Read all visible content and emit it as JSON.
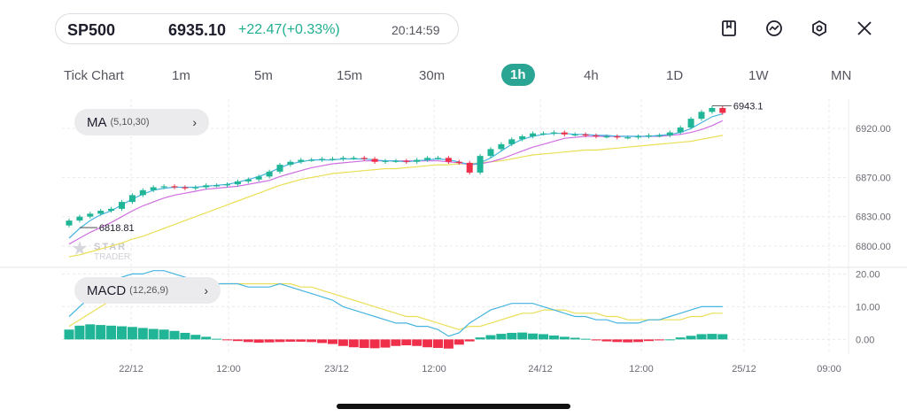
{
  "quote": {
    "symbol": "SP500",
    "price": "6935.10",
    "change": "+22.47(+0.33%)",
    "time": "20:14:59"
  },
  "toolbar_icons": [
    "bookmark-icon",
    "trend-chart-icon",
    "settings-hex-icon",
    "close-icon"
  ],
  "timeframes": {
    "items": [
      "Tick Chart",
      "1m",
      "5m",
      "15m",
      "30m",
      "1h",
      "4h",
      "1D",
      "1W",
      "MN"
    ],
    "selected": "1h"
  },
  "indicators": {
    "ma": {
      "name": "MA",
      "params": "(5,10,30)"
    },
    "macd": {
      "name": "MACD",
      "params": "(12,26,9)"
    }
  },
  "watermark": {
    "line1": "STAR",
    "line2": "TRADER"
  },
  "chart_data": [
    {
      "type": "candlestick",
      "panel": "price",
      "high_label": "6943.1",
      "low_label": "6818.81",
      "y_ticks": [
        "6920.00",
        "6870.00",
        "6830.00",
        "6800.00"
      ],
      "y_tick_values": [
        6920,
        6870,
        6830,
        6800
      ],
      "ylim": [
        6780,
        6950
      ],
      "x_ticks": [
        "22/12",
        "12:00",
        "23/12",
        "12:00",
        "24/12",
        "12:00",
        "25/12",
        "09:00"
      ],
      "colors": {
        "up": "#1fb596",
        "down": "#ef2e4a",
        "ma5": "#46b4e0",
        "ma10": "#cf6ee0",
        "ma30": "#eadf56"
      },
      "close": [
        6826,
        6830,
        6833,
        6836,
        6838,
        6845,
        6852,
        6857,
        6860,
        6861,
        6860,
        6859,
        6860,
        6862,
        6862,
        6863,
        6866,
        6868,
        6871,
        6876,
        6883,
        6886,
        6888,
        6888,
        6889,
        6889,
        6890,
        6890,
        6889,
        6886,
        6887,
        6887,
        6886,
        6888,
        6890,
        6890,
        6886,
        6885,
        6875,
        6892,
        6899,
        6904,
        6909,
        6912,
        6915,
        6915,
        6916,
        6914,
        6914,
        6913,
        6912,
        6912,
        6911,
        6911,
        6912,
        6913,
        6913,
        6916,
        6921,
        6930,
        6937,
        6941,
        6936
      ],
      "ma5": [
        6808,
        6818,
        6826,
        6832,
        6836,
        6842,
        6848,
        6853,
        6857,
        6859,
        6860,
        6860,
        6860,
        6861,
        6862,
        6863,
        6865,
        6868,
        6871,
        6875,
        6880,
        6884,
        6886,
        6888,
        6888,
        6888,
        6889,
        6889,
        6889,
        6888,
        6887,
        6887,
        6886,
        6887,
        6888,
        6889,
        6888,
        6886,
        6883,
        6885,
        6890,
        6897,
        6904,
        6909,
        6912,
        6914,
        6915,
        6915,
        6914,
        6914,
        6913,
        6913,
        6912,
        6912,
        6912,
        6912,
        6913,
        6914,
        6916,
        6920,
        6926,
        6932,
        6935
      ],
      "ma10": [
        6802,
        6808,
        6814,
        6819,
        6824,
        6830,
        6836,
        6841,
        6845,
        6849,
        6852,
        6854,
        6856,
        6858,
        6859,
        6860,
        6861,
        6863,
        6865,
        6867,
        6871,
        6874,
        6877,
        6880,
        6882,
        6884,
        6885,
        6886,
        6887,
        6887,
        6887,
        6887,
        6887,
        6887,
        6887,
        6887,
        6886,
        6885,
        6883,
        6884,
        6886,
        6889,
        6893,
        6897,
        6901,
        6904,
        6907,
        6910,
        6911,
        6912,
        6912,
        6912,
        6912,
        6912,
        6912,
        6912,
        6912,
        6913,
        6914,
        6916,
        6919,
        6923,
        6928
      ],
      "ma30": [
        6789,
        6791,
        6794,
        6797,
        6800,
        6803,
        6807,
        6810,
        6814,
        6818,
        6822,
        6826,
        6830,
        6834,
        6838,
        6842,
        6846,
        6850,
        6854,
        6858,
        6862,
        6865,
        6868,
        6870,
        6872,
        6874,
        6875,
        6876,
        6877,
        6878,
        6879,
        6879,
        6880,
        6881,
        6882,
        6883,
        6883,
        6884,
        6884,
        6885,
        6886,
        6887,
        6889,
        6891,
        6893,
        6894,
        6895,
        6896,
        6897,
        6898,
        6898,
        6899,
        6900,
        6901,
        6902,
        6903,
        6904,
        6905,
        6906,
        6907,
        6909,
        6911,
        6913
      ]
    },
    {
      "type": "macd",
      "panel": "indicator",
      "y_ticks": [
        "20.00",
        "10.00",
        "0.00"
      ],
      "y_tick_values": [
        20,
        10,
        0
      ],
      "ylim": [
        -4.5,
        22
      ],
      "dif": [
        7,
        10,
        13,
        16,
        18,
        19,
        20,
        20,
        21,
        21,
        20,
        19,
        18,
        18,
        17,
        17,
        17,
        16,
        16,
        16,
        17,
        16,
        15,
        14,
        13,
        12,
        10,
        9,
        8,
        7,
        6,
        5,
        5,
        4,
        4,
        3,
        1,
        2,
        5,
        7,
        9,
        10,
        11,
        11,
        11,
        10,
        9,
        8,
        7,
        7,
        6,
        6,
        5,
        5,
        5,
        6,
        6,
        7,
        8,
        9,
        10,
        10,
        10
      ],
      "dea": [
        4,
        6,
        8,
        10,
        12,
        14,
        15,
        16,
        17,
        17,
        17,
        17,
        17,
        17,
        17,
        17,
        17,
        17,
        17,
        17,
        17,
        17,
        16,
        16,
        15,
        14,
        13,
        12,
        11,
        10,
        9,
        8,
        7,
        7,
        6,
        5,
        4,
        3,
        4,
        4,
        5,
        6,
        7,
        8,
        8,
        9,
        9,
        9,
        8,
        8,
        8,
        7,
        7,
        6,
        6,
        6,
        6,
        6,
        6,
        7,
        7,
        8,
        8
      ],
      "hist": [
        3.0,
        4.2,
        4.6,
        4.4,
        4.2,
        4.0,
        3.8,
        3.5,
        3.2,
        3.0,
        2.6,
        2.0,
        1.4,
        0.8,
        0.2,
        -0.2,
        -0.5,
        -0.8,
        -1.0,
        -0.9,
        -0.8,
        -0.7,
        -0.7,
        -0.8,
        -1.1,
        -1.4,
        -2.0,
        -2.4,
        -2.6,
        -2.7,
        -2.5,
        -2.0,
        -1.8,
        -2.0,
        -2.4,
        -2.6,
        -2.8,
        -1.6,
        -0.6,
        0.6,
        1.3,
        1.7,
        2.0,
        2.1,
        1.8,
        1.6,
        1.2,
        0.8,
        0.5,
        0.2,
        -0.3,
        -0.6,
        -0.8,
        -0.9,
        -0.8,
        -0.5,
        -0.3,
        0.0,
        0.6,
        1.1,
        1.6,
        1.7,
        1.6
      ]
    }
  ]
}
